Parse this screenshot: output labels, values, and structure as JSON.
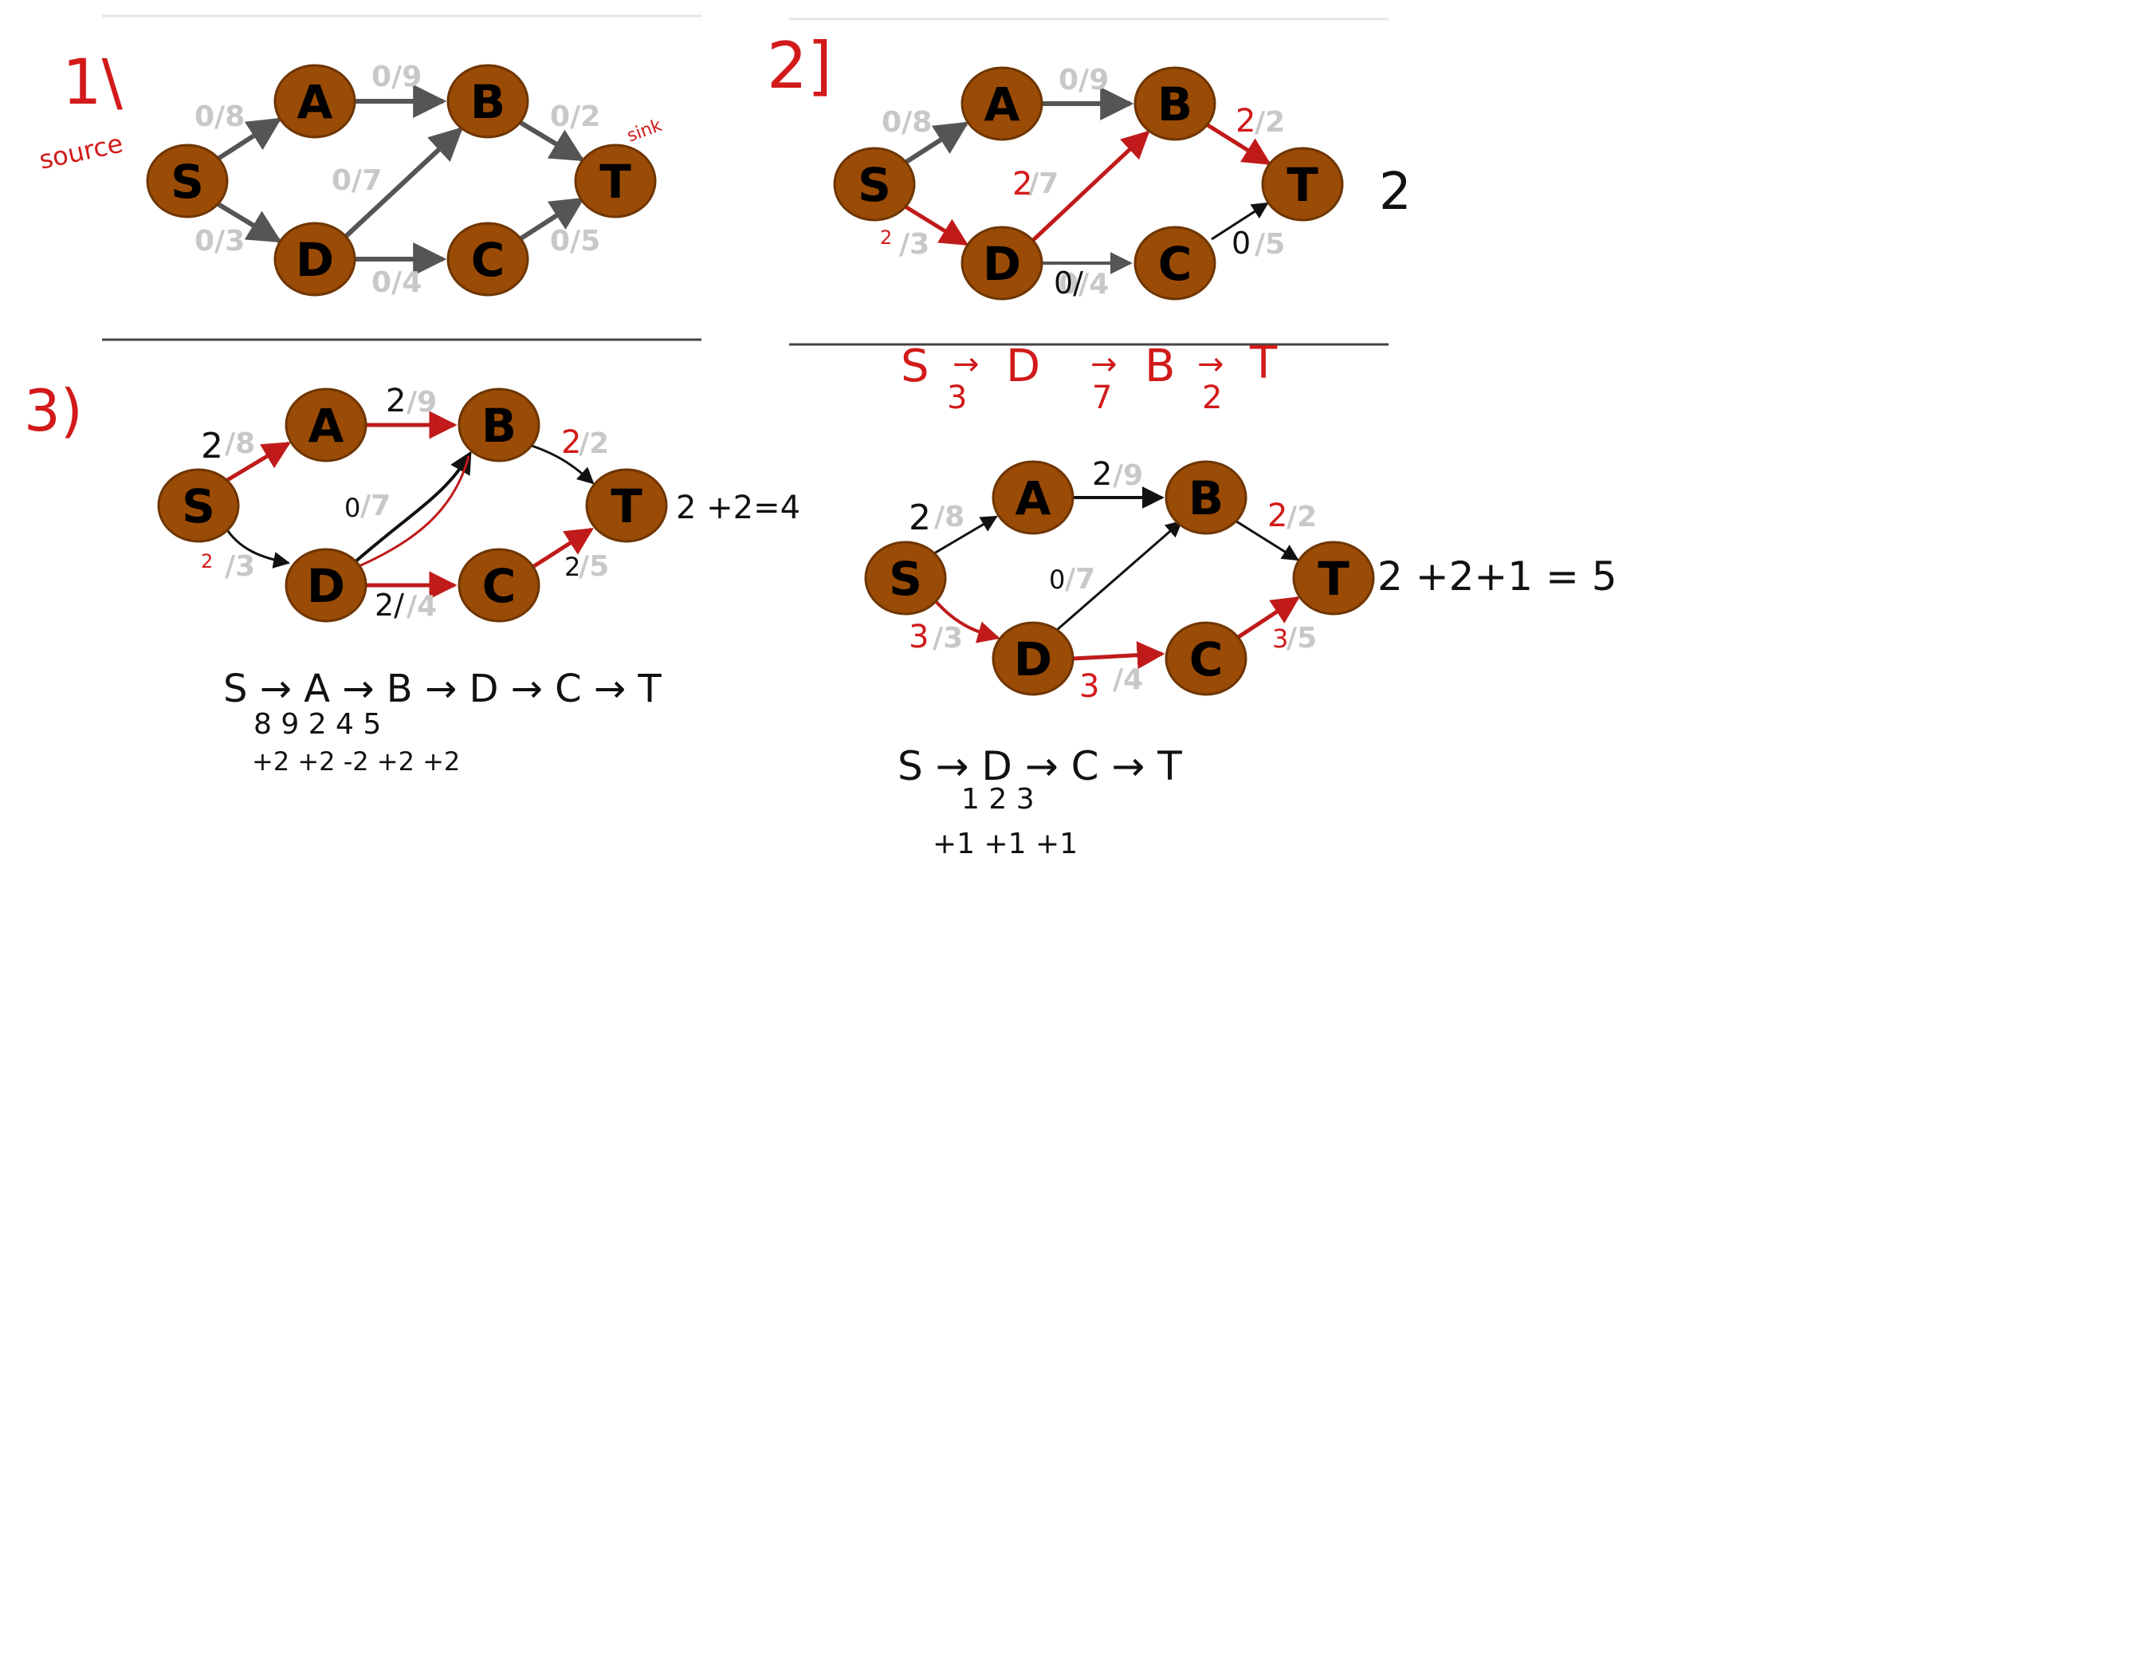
{
  "colors": {
    "node_fill": "#9a4b05",
    "node_stroke": "#6e3500",
    "capacity_text": "#c8c8c8",
    "edge_default": "#555555",
    "edge_flow": "#c01a1a",
    "ink_black": "#111111",
    "ink_red": "#d21a1a"
  },
  "nodes": [
    "S",
    "A",
    "B",
    "T",
    "D",
    "C"
  ],
  "panels": [
    {
      "step": "1\\",
      "capacities": {
        "SA": "0/8",
        "AB": "0/9",
        "BT": "0/2",
        "DB": "0/7",
        "SD": "0/3",
        "CT": "0/5",
        "DC": "0/4"
      },
      "notes": {
        "source": "source",
        "sink": "sink"
      }
    },
    {
      "step": "2]",
      "capacities": {
        "SA": "0/8",
        "AB": "0/9",
        "BT": "/2",
        "DB": "/7",
        "SD": "/3",
        "CT": "/5",
        "DC": "0/4"
      },
      "handwritten": {
        "BT": "2",
        "DB": "2",
        "SD": "2",
        "CT": "0",
        "DC": "0/",
        "flow_total": "2"
      },
      "path_line": [
        "S",
        "→",
        "D",
        "→",
        "B",
        "→",
        "T"
      ],
      "path_amounts": [
        "3",
        "7",
        "2"
      ]
    },
    {
      "step": "3)",
      "capacities": {
        "SA": "/8",
        "AB": "/9",
        "BT": "/2",
        "DB": "/7",
        "SD": "/3",
        "CT": "/5",
        "DC": "/4"
      },
      "handwritten": {
        "SA": "2",
        "AB": "2",
        "BT": "2",
        "DB": "0",
        "SD": "2",
        "CT": "2",
        "DC": "2/",
        "flow_total": "2 +2=4"
      },
      "path_line": "S → A → B → D → C → T",
      "path_amounts": "8    9    2    4    5",
      "path_deltas": "+2    +2   -2   +2   +2"
    },
    {
      "capacities": {
        "SA": "/8",
        "AB": "/9",
        "BT": "/2",
        "DB": "/7",
        "SD": "/3",
        "CT": "/5",
        "DC": "/4"
      },
      "handwritten": {
        "SA": "2",
        "AB": "2",
        "BT": "2",
        "DB": "0",
        "SD": "3",
        "CT": "3",
        "DC": "3",
        "flow_total": "2 +2+1 = 5"
      },
      "path_line": "S → D → C → T",
      "path_amounts": "1     2     3",
      "path_deltas": "+1     +1     +1"
    }
  ]
}
